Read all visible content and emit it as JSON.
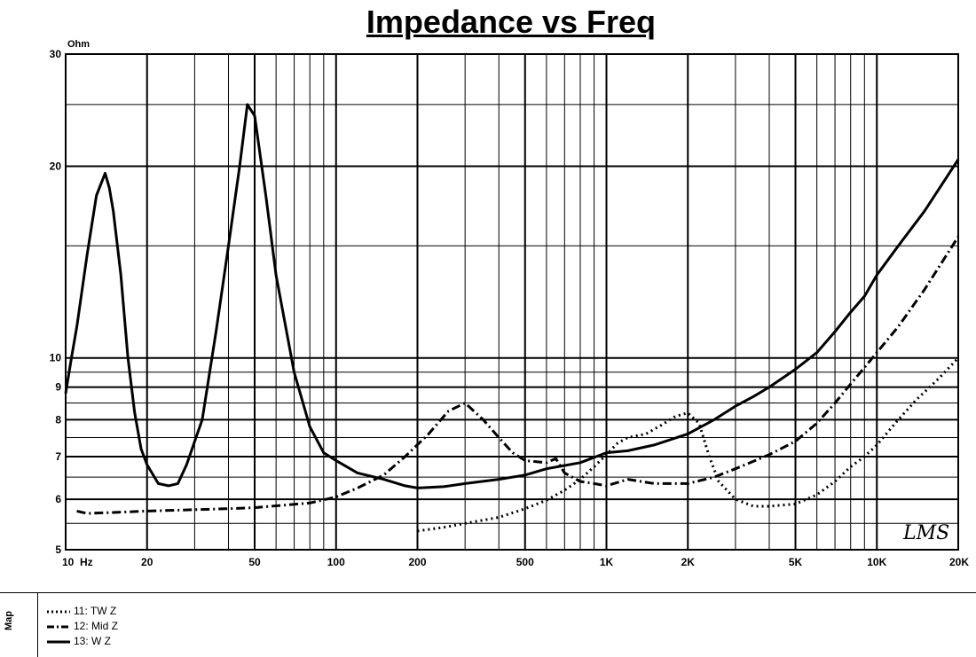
{
  "chart_data": {
    "type": "line",
    "title": "Impedance vs Freq",
    "y_unit_label": "Ohm",
    "x_scale": "log",
    "y_scale": "log",
    "xlim": [
      10,
      20000
    ],
    "ylim": [
      5,
      30
    ],
    "grid": true,
    "x_ticks": [
      {
        "value": 10,
        "label": "10"
      },
      {
        "value": 20,
        "label": "20"
      },
      {
        "value": 50,
        "label": "50"
      },
      {
        "value": 100,
        "label": "100"
      },
      {
        "value": 200,
        "label": "200"
      },
      {
        "value": 500,
        "label": "500"
      },
      {
        "value": 1000,
        "label": "1K"
      },
      {
        "value": 2000,
        "label": "2K"
      },
      {
        "value": 5000,
        "label": "5K"
      },
      {
        "value": 10000,
        "label": "10K"
      },
      {
        "value": 20000,
        "label": "20K"
      }
    ],
    "x_unit_label": "Hz",
    "y_ticks": [
      {
        "value": 5,
        "label": "5"
      },
      {
        "value": 6,
        "label": "6"
      },
      {
        "value": 7,
        "label": "7"
      },
      {
        "value": 8,
        "label": "8"
      },
      {
        "value": 9,
        "label": "9"
      },
      {
        "value": 10,
        "label": "10"
      },
      {
        "value": 20,
        "label": "20"
      },
      {
        "value": 30,
        "label": "30"
      }
    ],
    "series": [
      {
        "name": "11: TW Z",
        "style": "dotted",
        "points": [
          [
            200,
            5.35
          ],
          [
            250,
            5.42
          ],
          [
            300,
            5.5
          ],
          [
            400,
            5.62
          ],
          [
            500,
            5.8
          ],
          [
            600,
            5.98
          ],
          [
            700,
            6.2
          ],
          [
            800,
            6.45
          ],
          [
            900,
            6.75
          ],
          [
            1000,
            7.05
          ],
          [
            1100,
            7.35
          ],
          [
            1200,
            7.5
          ],
          [
            1400,
            7.6
          ],
          [
            1600,
            7.85
          ],
          [
            1800,
            8.1
          ],
          [
            2000,
            8.2
          ],
          [
            2200,
            7.9
          ],
          [
            2400,
            7.0
          ],
          [
            2600,
            6.4
          ],
          [
            3000,
            6.0
          ],
          [
            3500,
            5.85
          ],
          [
            4000,
            5.85
          ],
          [
            5000,
            5.9
          ],
          [
            6000,
            6.1
          ],
          [
            7000,
            6.4
          ],
          [
            8000,
            6.75
          ],
          [
            9000,
            7.0
          ],
          [
            10000,
            7.3
          ],
          [
            12000,
            8.0
          ],
          [
            14000,
            8.6
          ],
          [
            17000,
            9.3
          ],
          [
            20000,
            10.0
          ]
        ]
      },
      {
        "name": "12: Mid Z",
        "style": "dash-dot",
        "points": [
          [
            11,
            5.75
          ],
          [
            12,
            5.7
          ],
          [
            15,
            5.72
          ],
          [
            20,
            5.75
          ],
          [
            30,
            5.78
          ],
          [
            40,
            5.8
          ],
          [
            50,
            5.82
          ],
          [
            60,
            5.86
          ],
          [
            80,
            5.92
          ],
          [
            100,
            6.05
          ],
          [
            120,
            6.25
          ],
          [
            150,
            6.55
          ],
          [
            180,
            7.0
          ],
          [
            220,
            7.6
          ],
          [
            260,
            8.25
          ],
          [
            300,
            8.5
          ],
          [
            350,
            8.0
          ],
          [
            400,
            7.5
          ],
          [
            450,
            7.1
          ],
          [
            500,
            6.9
          ],
          [
            600,
            6.85
          ],
          [
            650,
            6.95
          ],
          [
            700,
            6.6
          ],
          [
            800,
            6.4
          ],
          [
            900,
            6.35
          ],
          [
            1000,
            6.3
          ],
          [
            1200,
            6.45
          ],
          [
            1500,
            6.35
          ],
          [
            2000,
            6.35
          ],
          [
            2500,
            6.5
          ],
          [
            3000,
            6.7
          ],
          [
            4000,
            7.05
          ],
          [
            5000,
            7.4
          ],
          [
            6000,
            7.9
          ],
          [
            7000,
            8.5
          ],
          [
            8000,
            9.1
          ],
          [
            10000,
            10.2
          ],
          [
            12000,
            11.2
          ],
          [
            15000,
            12.8
          ],
          [
            20000,
            15.5
          ]
        ]
      },
      {
        "name": "13: W Z",
        "style": "solid",
        "points": [
          [
            10,
            8.8
          ],
          [
            10.5,
            10.0
          ],
          [
            11,
            11.2
          ],
          [
            12,
            14.5
          ],
          [
            13,
            18.0
          ],
          [
            14,
            19.5
          ],
          [
            14.5,
            18.5
          ],
          [
            15,
            17.0
          ],
          [
            16,
            13.5
          ],
          [
            17,
            10.0
          ],
          [
            18,
            8.2
          ],
          [
            19,
            7.2
          ],
          [
            20,
            6.8
          ],
          [
            22,
            6.35
          ],
          [
            24,
            6.3
          ],
          [
            26,
            6.35
          ],
          [
            28,
            6.8
          ],
          [
            32,
            8.0
          ],
          [
            36,
            11.0
          ],
          [
            40,
            15.0
          ],
          [
            44,
            20.0
          ],
          [
            47,
            25.0
          ],
          [
            50,
            24.0
          ],
          [
            55,
            18.0
          ],
          [
            60,
            13.5
          ],
          [
            70,
            9.5
          ],
          [
            80,
            7.8
          ],
          [
            90,
            7.1
          ],
          [
            100,
            6.9
          ],
          [
            120,
            6.6
          ],
          [
            150,
            6.45
          ],
          [
            180,
            6.3
          ],
          [
            200,
            6.25
          ],
          [
            250,
            6.28
          ],
          [
            300,
            6.35
          ],
          [
            400,
            6.45
          ],
          [
            500,
            6.55
          ],
          [
            600,
            6.7
          ],
          [
            800,
            6.85
          ],
          [
            1000,
            7.1
          ],
          [
            1200,
            7.15
          ],
          [
            1500,
            7.3
          ],
          [
            2000,
            7.6
          ],
          [
            2500,
            8.0
          ],
          [
            3000,
            8.4
          ],
          [
            3500,
            8.7
          ],
          [
            4000,
            9.0
          ],
          [
            5000,
            9.6
          ],
          [
            6000,
            10.2
          ],
          [
            7000,
            11.0
          ],
          [
            8000,
            11.8
          ],
          [
            9000,
            12.5
          ],
          [
            10000,
            13.5
          ],
          [
            12000,
            15.0
          ],
          [
            15000,
            17.0
          ],
          [
            20000,
            20.5
          ]
        ]
      }
    ],
    "watermark": "LMS",
    "legend": {
      "placement": "bottom",
      "side_label": "Map"
    }
  }
}
